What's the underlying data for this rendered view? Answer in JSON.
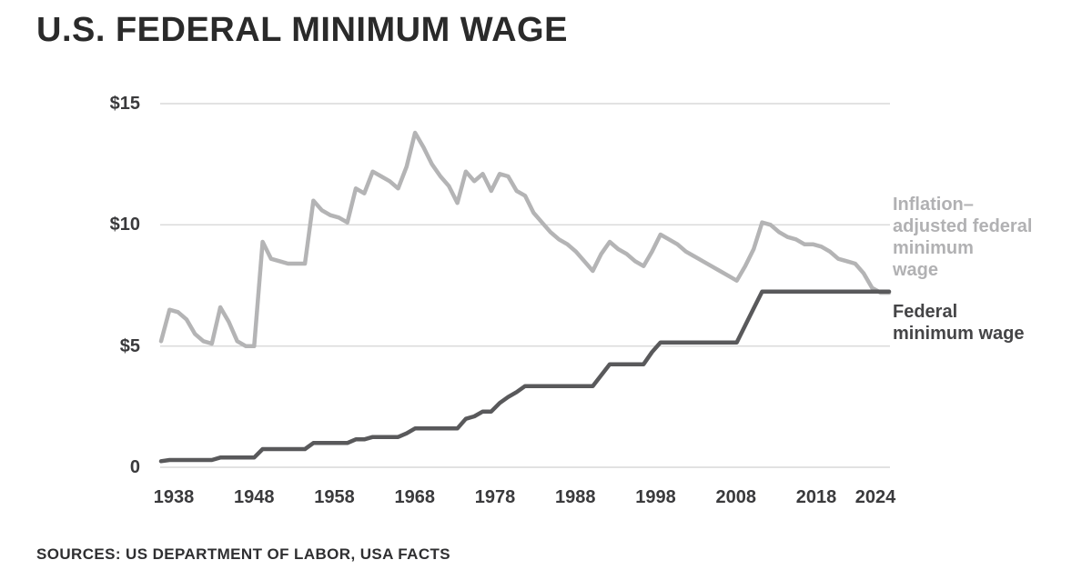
{
  "title": "U.S. FEDERAL MINIMUM WAGE",
  "source": "SOURCES: US DEPARTMENT OF LABOR, USA FACTS",
  "colors": {
    "background": "#ffffff",
    "title": "#2a2a2a",
    "gridline": "#d9d9d9",
    "axis_label": "#3a3a3c",
    "adjusted_line": "#b4b4b5",
    "nominal_line": "#59595b",
    "legend_adjusted_text": "#b1b1b3",
    "legend_nominal_text": "#454547"
  },
  "legend": {
    "adjusted_label_lines": [
      "Inflation–",
      "adjusted federal",
      "minimum",
      "wage"
    ],
    "nominal_label_lines": [
      "Federal",
      "minimum wage"
    ]
  },
  "chart_data": {
    "type": "line",
    "title": "U.S. FEDERAL MINIMUM WAGE",
    "xlabel": "",
    "ylabel": "",
    "ylim": [
      0,
      15
    ],
    "grid": "horizontal",
    "legend_position": "right",
    "y_ticks": [
      {
        "value": 15,
        "label": "$15"
      },
      {
        "value": 10,
        "label": "$10"
      },
      {
        "value": 5,
        "label": "$5"
      },
      {
        "value": 0,
        "label": "0"
      }
    ],
    "x_ticks": [
      1938,
      1948,
      1958,
      1968,
      1978,
      1988,
      1998,
      2008,
      2018,
      2024
    ],
    "x": [
      1938,
      1939,
      1940,
      1941,
      1942,
      1943,
      1944,
      1945,
      1946,
      1947,
      1948,
      1949,
      1950,
      1951,
      1952,
      1953,
      1954,
      1955,
      1956,
      1957,
      1958,
      1959,
      1960,
      1961,
      1962,
      1963,
      1964,
      1965,
      1966,
      1967,
      1968,
      1969,
      1970,
      1971,
      1972,
      1973,
      1974,
      1975,
      1976,
      1977,
      1978,
      1979,
      1980,
      1981,
      1982,
      1983,
      1984,
      1985,
      1986,
      1987,
      1988,
      1989,
      1990,
      1991,
      1992,
      1993,
      1994,
      1995,
      1996,
      1997,
      1998,
      1999,
      2000,
      2001,
      2002,
      2003,
      2004,
      2005,
      2006,
      2007,
      2008,
      2009,
      2010,
      2011,
      2012,
      2013,
      2014,
      2015,
      2016,
      2017,
      2018,
      2019,
      2020,
      2021,
      2022,
      2023,
      2024
    ],
    "series": [
      {
        "name": "Inflation-adjusted federal minimum wage",
        "data_name": "inflation-adjusted-line",
        "color": "#b4b4b5",
        "values": [
          5.2,
          6.5,
          6.4,
          6.1,
          5.5,
          5.2,
          5.1,
          6.6,
          6.0,
          5.2,
          5.0,
          5.0,
          9.3,
          8.6,
          8.5,
          8.4,
          8.4,
          8.4,
          11.0,
          10.6,
          10.4,
          10.3,
          10.1,
          11.5,
          11.3,
          12.2,
          12.0,
          11.8,
          11.5,
          12.4,
          13.8,
          13.2,
          12.5,
          12.0,
          11.6,
          10.9,
          12.2,
          11.8,
          12.1,
          11.4,
          12.1,
          12.0,
          11.4,
          11.2,
          10.5,
          10.1,
          9.7,
          9.4,
          9.2,
          8.9,
          8.5,
          8.1,
          8.8,
          9.3,
          9.0,
          8.8,
          8.5,
          8.3,
          8.9,
          9.6,
          9.4,
          9.2,
          8.9,
          8.7,
          8.5,
          8.3,
          8.1,
          7.9,
          7.7,
          8.3,
          9.0,
          10.1,
          10.0,
          9.7,
          9.5,
          9.4,
          9.2,
          9.2,
          9.1,
          8.9,
          8.6,
          8.5,
          8.4,
          8.0,
          7.4,
          7.2,
          7.2
        ]
      },
      {
        "name": "Federal minimum wage",
        "data_name": "federal-minimum-wage-line",
        "color": "#59595b",
        "values": [
          0.25,
          0.3,
          0.3,
          0.3,
          0.3,
          0.3,
          0.3,
          0.4,
          0.4,
          0.4,
          0.4,
          0.4,
          0.75,
          0.75,
          0.75,
          0.75,
          0.75,
          0.75,
          1.0,
          1.0,
          1.0,
          1.0,
          1.0,
          1.15,
          1.15,
          1.25,
          1.25,
          1.25,
          1.25,
          1.4,
          1.6,
          1.6,
          1.6,
          1.6,
          1.6,
          1.6,
          2.0,
          2.1,
          2.3,
          2.3,
          2.65,
          2.9,
          3.1,
          3.35,
          3.35,
          3.35,
          3.35,
          3.35,
          3.35,
          3.35,
          3.35,
          3.35,
          3.8,
          4.25,
          4.25,
          4.25,
          4.25,
          4.25,
          4.75,
          5.15,
          5.15,
          5.15,
          5.15,
          5.15,
          5.15,
          5.15,
          5.15,
          5.15,
          5.15,
          5.85,
          6.55,
          7.25,
          7.25,
          7.25,
          7.25,
          7.25,
          7.25,
          7.25,
          7.25,
          7.25,
          7.25,
          7.25,
          7.25,
          7.25,
          7.25,
          7.25,
          7.25
        ]
      }
    ]
  }
}
